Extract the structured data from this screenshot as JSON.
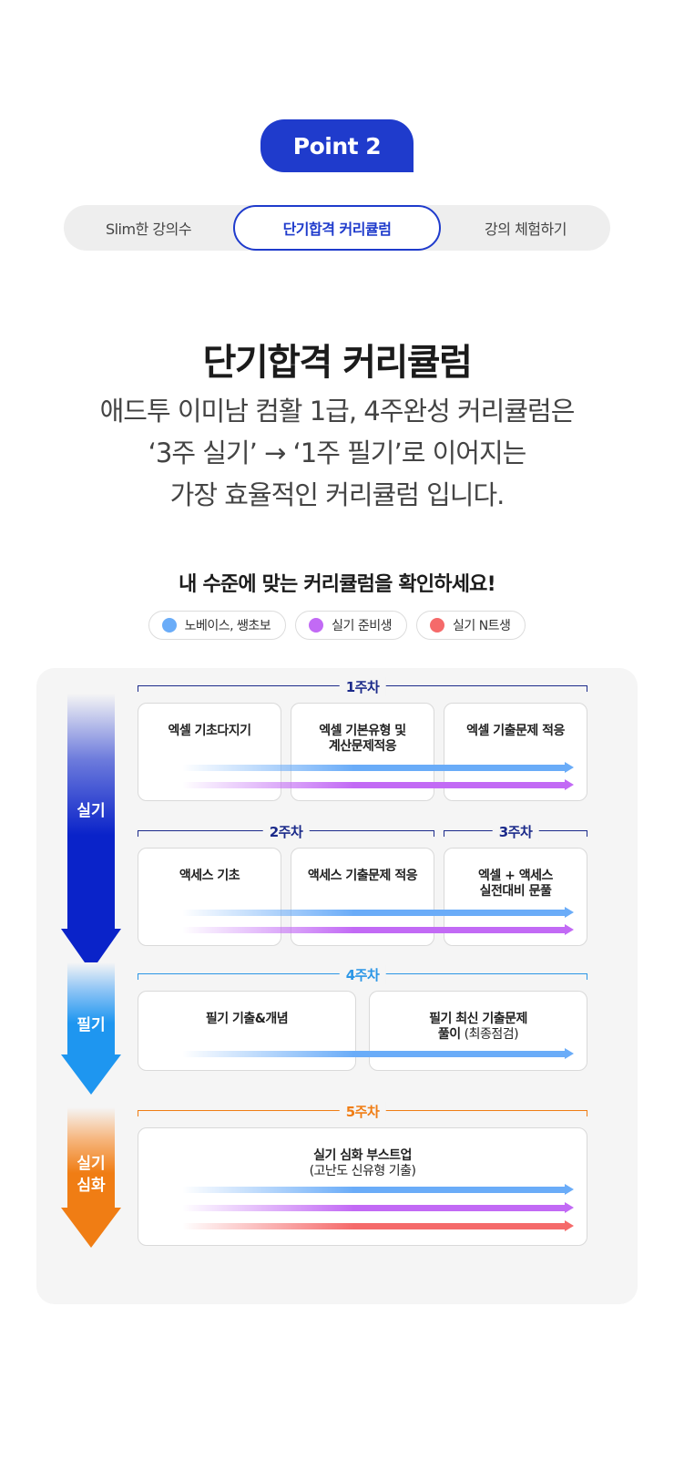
{
  "badge": "Point 2",
  "tabs": [
    {
      "label": "Slim한 강의수"
    },
    {
      "label": "단기합격 커리큘럼"
    },
    {
      "label": "강의 체험하기"
    }
  ],
  "heading": "단기합격 커리큘럼",
  "description": [
    "애드투 이미남 컴활 1급, 4주완성 커리큘럼은",
    "‘3주 실기’ → ‘1주 필기’로 이어지는",
    "가장 효율적인 커리큘럼 입니다."
  ],
  "subheading": "내 수준에 맞는 커리큘럼을 확인하세요!",
  "legend": [
    {
      "label": "노베이스, 쌩초보",
      "color": "#6aacf8"
    },
    {
      "label": "실기 준비생",
      "color": "#c26af5"
    },
    {
      "label": "실기 N트생",
      "color": "#f56a6a"
    }
  ],
  "stages": [
    {
      "label": "실기",
      "color": "#0a23c9"
    },
    {
      "label": "필기",
      "color": "#1e96f0"
    },
    {
      "label": "실기\n심화",
      "color": "#f07d14"
    }
  ],
  "weeks": [
    {
      "label": "1주차",
      "color": "#1b2a8a"
    },
    {
      "label": "2주차",
      "color": "#1b2a8a"
    },
    {
      "label": "3주차",
      "color": "#1b2a8a"
    },
    {
      "label": "4주차",
      "color": "#2b96e6"
    },
    {
      "label": "5주차",
      "color": "#f07d14"
    }
  ],
  "cards": {
    "c1": {
      "line1": "엑셀 기초다지기"
    },
    "c2": {
      "line1": "엑셀 기본유형 및",
      "line2": "계산문제적응"
    },
    "c3": {
      "line1": "엑셀 기출문제 적응"
    },
    "c4": {
      "line1": "액세스 기초"
    },
    "c5": {
      "line1": "액세스 기출문제 적응"
    },
    "c6": {
      "line1": "엑셀 + 액세스",
      "line2": "실전대비 문풀"
    },
    "c7": {
      "line1": "필기 기출&개념"
    },
    "c8": {
      "line1": "필기 최신 기출문제",
      "line2_bold": "풀이",
      "line2_light": " (최종점검)"
    },
    "c9": {
      "line1": "실기 심화 부스트업",
      "line2": "(고난도 신유형 기출)"
    }
  }
}
